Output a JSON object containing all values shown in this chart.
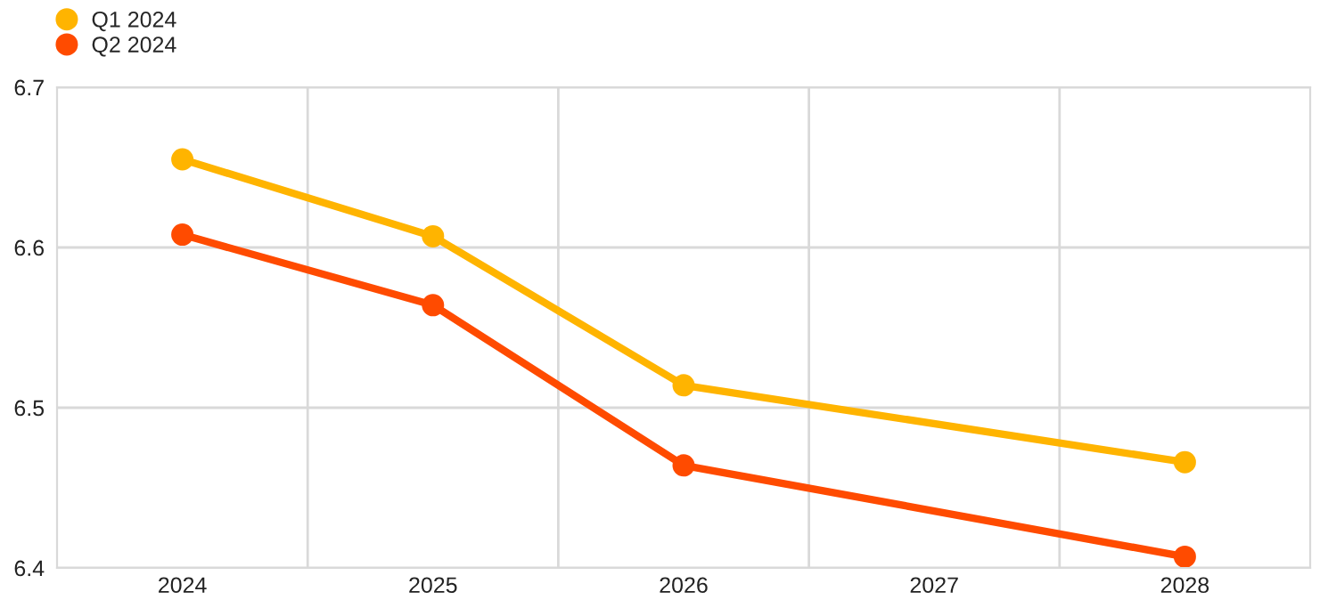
{
  "chart_data": {
    "type": "line",
    "categories": [
      "2024",
      "2025",
      "2026",
      "2027",
      "2028"
    ],
    "series": [
      {
        "name": "Q1 2024",
        "color": "#ffb400",
        "values": [
          6.655,
          6.607,
          6.514,
          null,
          6.466
        ]
      },
      {
        "name": "Q2 2024",
        "color": "#ff4b00",
        "values": [
          6.608,
          6.564,
          6.464,
          null,
          6.407
        ]
      }
    ],
    "ylim": [
      6.4,
      6.7
    ],
    "yticks": [
      6.4,
      6.5,
      6.6,
      6.7
    ],
    "grid": true,
    "legend": "top left",
    "marker": "circle",
    "line_style": "solid"
  }
}
